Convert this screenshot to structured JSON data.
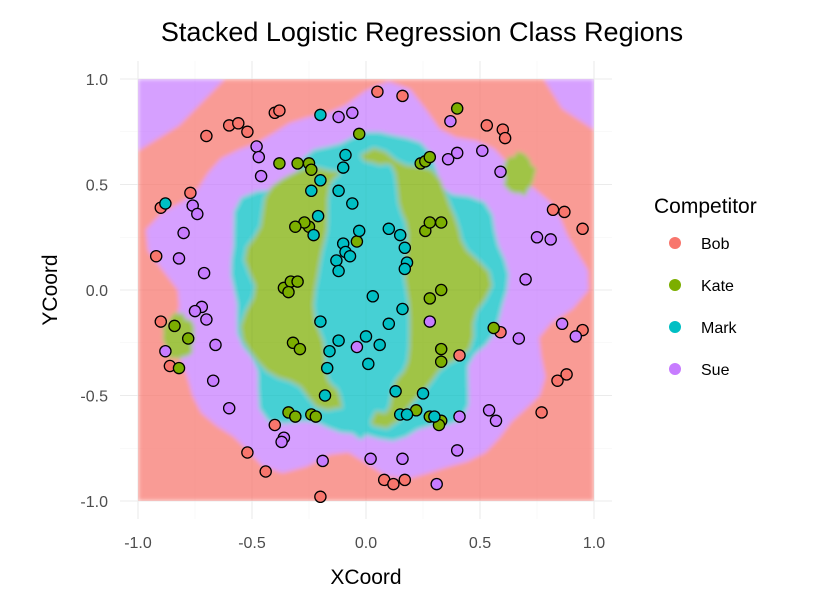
{
  "chart_data": {
    "type": "scatter",
    "title": "Stacked Logistic Regression Class Regions",
    "xlabel": "XCoord",
    "ylabel": "YCoord",
    "xlim": [
      -1.0,
      1.0
    ],
    "ylim": [
      -1.0,
      1.0
    ],
    "x_ticks": [
      "-1.0",
      "-0.5",
      "0.0",
      "0.5",
      "1.0"
    ],
    "y_ticks": [
      "-1.0",
      "-0.5",
      "0.0",
      "0.5",
      "1.0"
    ],
    "grid": true,
    "legend": {
      "title": "Competitor",
      "position": "right",
      "entries": [
        "Bob",
        "Kate",
        "Mark",
        "Sue"
      ]
    },
    "colors": {
      "Bob": "#F8766D",
      "Kate": "#7CAE00",
      "Mark": "#00BFC4",
      "Sue": "#C77CFF"
    },
    "region_layers": [
      {
        "class": "Bob",
        "shape": "background square",
        "extent": [
          -1.0,
          1.0,
          -1.0,
          1.0
        ]
      },
      {
        "class": "Sue",
        "shape": "corner",
        "corner": "top-left"
      },
      {
        "class": "Sue",
        "shape": "corner",
        "corner": "top-right"
      },
      {
        "class": "Sue",
        "shape": "disc",
        "center": [
          0.0,
          0.0
        ],
        "radius": 0.9
      },
      {
        "class": "Mark",
        "shape": "blob",
        "center": [
          0.0,
          0.0
        ],
        "radius_x": 0.6,
        "radius_y": 0.72
      },
      {
        "class": "Kate",
        "shape": "blob",
        "center": [
          -0.02,
          0.02
        ],
        "radius_x": 0.52,
        "radius_y": 0.62
      },
      {
        "class": "Mark",
        "shape": "blob",
        "center": [
          -0.01,
          0.0
        ],
        "radius_x": 0.2,
        "radius_y": 0.66
      },
      {
        "class": "Kate",
        "shape": "blob",
        "center": [
          -0.82,
          -0.22
        ],
        "radius_x": 0.07,
        "radius_y": 0.11
      },
      {
        "class": "Kate",
        "shape": "blob",
        "center": [
          0.67,
          0.55
        ],
        "radius_x": 0.07,
        "radius_y": 0.1
      }
    ],
    "series": [
      {
        "name": "Bob",
        "points": [
          [
            0.05,
            0.94
          ],
          [
            0.16,
            0.92
          ],
          [
            -0.4,
            0.84
          ],
          [
            -0.38,
            0.85
          ],
          [
            -0.6,
            0.78
          ],
          [
            -0.56,
            0.79
          ],
          [
            -0.7,
            0.73
          ],
          [
            -0.52,
            0.75
          ],
          [
            0.53,
            0.78
          ],
          [
            0.6,
            0.76
          ],
          [
            0.61,
            0.72
          ],
          [
            0.82,
            0.38
          ],
          [
            0.87,
            0.37
          ],
          [
            0.95,
            0.29
          ],
          [
            -0.77,
            0.46
          ],
          [
            -0.9,
            0.39
          ],
          [
            -0.92,
            0.16
          ],
          [
            -0.9,
            -0.15
          ],
          [
            -0.86,
            -0.36
          ],
          [
            0.41,
            -0.31
          ],
          [
            0.59,
            -0.2
          ],
          [
            0.84,
            -0.43
          ],
          [
            0.88,
            -0.4
          ],
          [
            0.95,
            -0.19
          ],
          [
            0.77,
            -0.58
          ],
          [
            -0.4,
            -0.64
          ],
          [
            -0.52,
            -0.77
          ],
          [
            -0.44,
            -0.86
          ],
          [
            -0.2,
            -0.98
          ],
          [
            0.08,
            -0.9
          ],
          [
            0.12,
            -0.92
          ],
          [
            0.17,
            -0.9
          ]
        ]
      },
      {
        "name": "Kate",
        "points": [
          [
            0.4,
            0.86
          ],
          [
            -0.03,
            0.74
          ],
          [
            0.24,
            0.6
          ],
          [
            0.26,
            0.61
          ],
          [
            0.28,
            0.63
          ],
          [
            -0.38,
            0.6
          ],
          [
            -0.3,
            0.6
          ],
          [
            -0.25,
            0.6
          ],
          [
            -0.24,
            0.57
          ],
          [
            -0.25,
            0.3
          ],
          [
            -0.27,
            0.32
          ],
          [
            -0.31,
            0.3
          ],
          [
            -0.04,
            0.23
          ],
          [
            0.26,
            0.28
          ],
          [
            0.28,
            0.32
          ],
          [
            0.33,
            0.32
          ],
          [
            -0.36,
            0.01
          ],
          [
            -0.33,
            0.04
          ],
          [
            -0.3,
            0.04
          ],
          [
            -0.34,
            -0.01
          ],
          [
            0.28,
            -0.04
          ],
          [
            0.33,
            0.0
          ],
          [
            -0.32,
            -0.25
          ],
          [
            -0.29,
            -0.28
          ],
          [
            0.33,
            -0.28
          ],
          [
            0.33,
            -0.34
          ],
          [
            0.56,
            -0.18
          ],
          [
            -0.84,
            -0.17
          ],
          [
            -0.78,
            -0.23
          ],
          [
            -0.82,
            -0.37
          ],
          [
            -0.34,
            -0.58
          ],
          [
            -0.31,
            -0.6
          ],
          [
            -0.24,
            -0.59
          ],
          [
            -0.22,
            -0.6
          ],
          [
            0.22,
            -0.57
          ],
          [
            0.28,
            -0.6
          ],
          [
            0.33,
            -0.62
          ],
          [
            0.32,
            -0.64
          ]
        ]
      },
      {
        "name": "Mark",
        "points": [
          [
            -0.2,
            0.83
          ],
          [
            -0.09,
            0.64
          ],
          [
            -0.1,
            0.58
          ],
          [
            -0.2,
            0.52
          ],
          [
            -0.24,
            0.47
          ],
          [
            -0.12,
            0.47
          ],
          [
            -0.06,
            0.41
          ],
          [
            -0.21,
            0.35
          ],
          [
            -0.23,
            0.26
          ],
          [
            -0.03,
            0.28
          ],
          [
            -0.1,
            0.22
          ],
          [
            -0.13,
            0.14
          ],
          [
            -0.12,
            0.09
          ],
          [
            -0.09,
            0.18
          ],
          [
            -0.07,
            0.16
          ],
          [
            0.1,
            0.29
          ],
          [
            0.15,
            0.26
          ],
          [
            0.17,
            0.2
          ],
          [
            0.18,
            0.13
          ],
          [
            0.17,
            0.1
          ],
          [
            -0.88,
            0.41
          ],
          [
            0.03,
            -0.03
          ],
          [
            -0.2,
            -0.15
          ],
          [
            -0.16,
            -0.29
          ],
          [
            -0.12,
            -0.24
          ],
          [
            0.1,
            -0.16
          ],
          [
            0.0,
            -0.22
          ],
          [
            0.06,
            -0.26
          ],
          [
            0.16,
            -0.09
          ],
          [
            -0.17,
            -0.37
          ],
          [
            -0.18,
            -0.5
          ],
          [
            0.01,
            -0.35
          ],
          [
            0.13,
            -0.48
          ],
          [
            0.15,
            -0.59
          ],
          [
            0.18,
            -0.59
          ],
          [
            0.25,
            -0.49
          ],
          [
            0.3,
            -0.6
          ]
        ]
      },
      {
        "name": "Sue",
        "points": [
          [
            -0.12,
            0.82
          ],
          [
            -0.06,
            0.84
          ],
          [
            0.37,
            0.8
          ],
          [
            -0.48,
            0.68
          ],
          [
            -0.47,
            0.63
          ],
          [
            -0.46,
            0.54
          ],
          [
            0.4,
            0.65
          ],
          [
            0.36,
            0.62
          ],
          [
            0.51,
            0.66
          ],
          [
            0.59,
            0.56
          ],
          [
            0.75,
            0.25
          ],
          [
            0.81,
            0.24
          ],
          [
            -0.76,
            0.4
          ],
          [
            -0.74,
            0.36
          ],
          [
            -0.8,
            0.27
          ],
          [
            -0.71,
            0.08
          ],
          [
            -0.82,
            0.15
          ],
          [
            -0.72,
            -0.08
          ],
          [
            -0.75,
            -0.1
          ],
          [
            -0.7,
            -0.14
          ],
          [
            -0.66,
            -0.26
          ],
          [
            -0.88,
            -0.29
          ],
          [
            -0.67,
            -0.43
          ],
          [
            -0.6,
            -0.56
          ],
          [
            0.7,
            0.05
          ],
          [
            0.86,
            -0.16
          ],
          [
            0.92,
            -0.22
          ],
          [
            0.67,
            -0.23
          ],
          [
            -0.04,
            -0.27
          ],
          [
            0.28,
            -0.15
          ],
          [
            0.54,
            -0.57
          ],
          [
            0.57,
            -0.62
          ],
          [
            0.41,
            -0.6
          ],
          [
            -0.36,
            -0.7
          ],
          [
            -0.37,
            -0.72
          ],
          [
            0.4,
            -0.76
          ],
          [
            -0.19,
            -0.81
          ],
          [
            0.02,
            -0.8
          ],
          [
            0.16,
            -0.8
          ],
          [
            0.31,
            -0.92
          ]
        ]
      }
    ]
  }
}
